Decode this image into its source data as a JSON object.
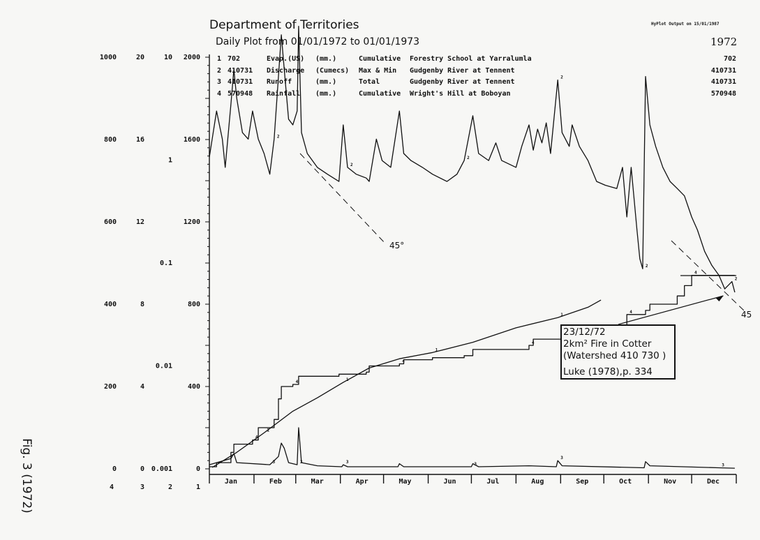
{
  "header": {
    "title": "Department of Territories",
    "subtitle": "Daily Plot from 01/01/1972 to 01/01/1973",
    "output_stamp": "HyPlot Output on 15/01/1987",
    "year": "1972"
  },
  "legend": [
    {
      "no": "1",
      "station": "702",
      "variable": "Evap.(US)",
      "units": "(mm.)",
      "mode": "Cumulative",
      "site": "Forestry School at Yarralumla",
      "total": "702"
    },
    {
      "no": "2",
      "station": "410731",
      "variable": "Discharge",
      "units": "(Cumecs)",
      "mode": "Max & Min",
      "site": "Gudgenby River at Tennent",
      "total": "410731"
    },
    {
      "no": "3",
      "station": "410731",
      "variable": "Runoff",
      "units": "(mm.)",
      "mode": "Total",
      "site": "Gudgenby River at Tennent",
      "total": "410731"
    },
    {
      "no": "4",
      "station": "570948",
      "variable": "Rainfall",
      "units": "(mm.)",
      "mode": "Cumulative",
      "site": "Wright's Hill at Boboyan",
      "total": "570948"
    }
  ],
  "figure_label": "Fig. 3 (1972)",
  "annotation": {
    "lines": [
      "23/12/72",
      "2km² Fire in Cotter",
      "(Watershed 410 730 )",
      "Luke (1978),p. 334"
    ],
    "date": "1972-12-23"
  },
  "angle_labels": [
    "45°",
    "45"
  ],
  "chart_data": {
    "type": "line",
    "xlabel": "",
    "x_range": [
      "1972-01-01",
      "1973-01-01"
    ],
    "months": [
      "Jan",
      "Feb",
      "Mar",
      "Apr",
      "May",
      "Jun",
      "Jul",
      "Aug",
      "Sep",
      "Oct",
      "Nov",
      "Dec"
    ],
    "grid": false,
    "axes": [
      {
        "id": "4",
        "ticks": [
          "1000",
          "800",
          "600",
          "400",
          "200",
          "0"
        ],
        "range": [
          0,
          1000
        ],
        "scale": "linear"
      },
      {
        "id": "3",
        "ticks": [
          "20",
          "16",
          "12",
          "8",
          "4",
          "0"
        ],
        "range": [
          0,
          20
        ],
        "scale": "linear"
      },
      {
        "id": "2",
        "ticks": [
          "10",
          "1",
          "0.1",
          "0.01",
          "0.001"
        ],
        "range": [
          0.001,
          10
        ],
        "scale": "log"
      },
      {
        "id": "1",
        "ticks": [
          "2000",
          "1600",
          "1200",
          "800",
          "400",
          "0"
        ],
        "range": [
          0,
          2000
        ],
        "scale": "linear"
      }
    ],
    "series": [
      {
        "id": "2",
        "axis": "2",
        "color": "#111111",
        "points": [
          [
            "1972-01-01",
            1.07
          ],
          [
            "1972-01-06",
            3.0
          ],
          [
            "1972-01-10",
            1.6
          ],
          [
            "1972-01-12",
            0.85
          ],
          [
            "1972-01-16",
            3.5
          ],
          [
            "1972-01-18",
            7.6
          ],
          [
            "1972-01-20",
            4.0
          ],
          [
            "1972-01-24",
            1.85
          ],
          [
            "1972-01-28",
            1.6
          ],
          [
            "1972-01-31",
            3.0
          ],
          [
            "1972-02-04",
            1.6
          ],
          [
            "1972-02-08",
            1.16
          ],
          [
            "1972-02-12",
            0.73
          ],
          [
            "1972-02-15",
            1.6
          ],
          [
            "1972-02-18",
            6.5
          ],
          [
            "1972-02-20",
            16.5
          ],
          [
            "1972-02-22",
            7.6
          ],
          [
            "1972-02-25",
            2.5
          ],
          [
            "1972-02-28",
            2.2
          ],
          [
            "1972-03-02",
            3.0
          ],
          [
            "1972-03-03",
            20
          ],
          [
            "1972-03-05",
            1.85
          ],
          [
            "1972-03-09",
            1.16
          ],
          [
            "1972-03-16",
            0.85
          ],
          [
            "1972-03-23",
            0.73
          ],
          [
            "1972-03-31",
            0.62
          ],
          [
            "1972-04-03",
            2.2
          ],
          [
            "1972-04-06",
            0.85
          ],
          [
            "1972-04-12",
            0.73
          ],
          [
            "1972-04-19",
            0.67
          ],
          [
            "1972-04-21",
            0.62
          ],
          [
            "1972-04-26",
            1.6
          ],
          [
            "1972-04-30",
            0.99
          ],
          [
            "1972-05-06",
            0.85
          ],
          [
            "1972-05-12",
            3.0
          ],
          [
            "1972-05-15",
            1.16
          ],
          [
            "1972-05-20",
            0.99
          ],
          [
            "1972-05-28",
            0.85
          ],
          [
            "1972-06-04",
            0.73
          ],
          [
            "1972-06-14",
            0.62
          ],
          [
            "1972-06-21",
            0.73
          ],
          [
            "1972-06-26",
            0.99
          ],
          [
            "1972-07-02",
            2.7
          ],
          [
            "1972-07-06",
            1.16
          ],
          [
            "1972-07-13",
            0.99
          ],
          [
            "1972-07-18",
            1.47
          ],
          [
            "1972-07-22",
            0.99
          ],
          [
            "1972-08-01",
            0.85
          ],
          [
            "1972-08-05",
            1.36
          ],
          [
            "1972-08-10",
            2.2
          ],
          [
            "1972-08-13",
            1.25
          ],
          [
            "1972-08-16",
            2.0
          ],
          [
            "1972-08-19",
            1.47
          ],
          [
            "1972-08-22",
            2.3
          ],
          [
            "1972-08-25",
            1.16
          ],
          [
            "1972-08-30",
            6.0
          ],
          [
            "1972-09-02",
            1.85
          ],
          [
            "1972-09-07",
            1.36
          ],
          [
            "1972-09-09",
            2.2
          ],
          [
            "1972-09-14",
            1.36
          ],
          [
            "1972-09-20",
            0.99
          ],
          [
            "1972-09-26",
            0.62
          ],
          [
            "1972-10-02",
            0.57
          ],
          [
            "1972-10-10",
            0.53
          ],
          [
            "1972-10-14",
            0.85
          ],
          [
            "1972-10-17",
            0.28
          ],
          [
            "1972-10-20",
            0.85
          ],
          [
            "1972-10-24",
            0.21
          ],
          [
            "1972-10-26",
            0.11
          ],
          [
            "1972-10-28",
            0.088
          ],
          [
            "1972-10-30",
            6.5
          ],
          [
            "1972-11-02",
            2.2
          ],
          [
            "1972-11-06",
            1.36
          ],
          [
            "1972-11-11",
            0.85
          ],
          [
            "1972-11-16",
            0.62
          ],
          [
            "1972-11-21",
            0.53
          ],
          [
            "1972-11-26",
            0.45
          ],
          [
            "1972-12-01",
            0.28
          ],
          [
            "1972-12-05",
            0.21
          ],
          [
            "1972-12-10",
            0.13
          ],
          [
            "1972-12-15",
            0.095
          ],
          [
            "1972-12-20",
            0.076
          ],
          [
            "1972-12-24",
            0.056
          ],
          [
            "1972-12-29",
            0.066
          ],
          [
            "1972-12-31",
            0.052
          ]
        ]
      },
      {
        "id": "4",
        "axis": "4",
        "color": "#111111",
        "points": [
          [
            "1972-01-01",
            5
          ],
          [
            "1972-01-06",
            15
          ],
          [
            "1972-01-16",
            40
          ],
          [
            "1972-01-18",
            60
          ],
          [
            "1972-01-31",
            70
          ],
          [
            "1972-02-04",
            100
          ],
          [
            "1972-02-15",
            120
          ],
          [
            "1972-02-18",
            170
          ],
          [
            "1972-02-20",
            200
          ],
          [
            "1972-02-28",
            205
          ],
          [
            "1972-03-03",
            225
          ],
          [
            "1972-03-31",
            230
          ],
          [
            "1972-04-19",
            235
          ],
          [
            "1972-04-21",
            250
          ],
          [
            "1972-05-12",
            255
          ],
          [
            "1972-05-15",
            265
          ],
          [
            "1972-06-04",
            270
          ],
          [
            "1972-06-26",
            275
          ],
          [
            "1972-07-02",
            290
          ],
          [
            "1972-08-10",
            300
          ],
          [
            "1972-08-13",
            315
          ],
          [
            "1972-09-09",
            320
          ],
          [
            "1972-09-14",
            335
          ],
          [
            "1972-10-14",
            345
          ],
          [
            "1972-10-17",
            375
          ],
          [
            "1972-10-30",
            385
          ],
          [
            "1972-11-02",
            400
          ],
          [
            "1972-11-21",
            420
          ],
          [
            "1972-11-26",
            445
          ],
          [
            "1972-12-01",
            470
          ],
          [
            "1972-12-31",
            470
          ]
        ]
      },
      {
        "id": "1",
        "axis": "1",
        "color": "#111111",
        "points": [
          [
            "1972-01-03",
            7
          ],
          [
            "1972-01-20",
            80
          ],
          [
            "1972-02-08",
            175
          ],
          [
            "1972-02-28",
            280
          ],
          [
            "1972-03-16",
            345
          ],
          [
            "1972-04-03",
            420
          ],
          [
            "1972-04-21",
            490
          ],
          [
            "1972-05-12",
            535
          ],
          [
            "1972-06-04",
            565
          ],
          [
            "1972-07-02",
            615
          ],
          [
            "1972-08-01",
            685
          ],
          [
            "1972-08-30",
            735
          ],
          [
            "1972-09-20",
            785
          ],
          [
            "1972-09-29",
            820
          ]
        ]
      },
      {
        "id": "3",
        "axis": "3",
        "color": "#111111",
        "points": [
          [
            "1972-01-01",
            0.2
          ],
          [
            "1972-01-16",
            0.5
          ],
          [
            "1972-01-18",
            0.75
          ],
          [
            "1972-01-20",
            0.3
          ],
          [
            "1972-02-12",
            0.2
          ],
          [
            "1972-02-18",
            0.6
          ],
          [
            "1972-02-20",
            1.25
          ],
          [
            "1972-02-22",
            1.0
          ],
          [
            "1972-02-25",
            0.3
          ],
          [
            "1972-03-02",
            0.2
          ],
          [
            "1972-03-03",
            2.0
          ],
          [
            "1972-03-05",
            0.3
          ],
          [
            "1972-03-16",
            0.15
          ],
          [
            "1972-04-02",
            0.1
          ],
          [
            "1972-04-03",
            0.2
          ],
          [
            "1972-04-06",
            0.1
          ],
          [
            "1972-05-11",
            0.1
          ],
          [
            "1972-05-12",
            0.25
          ],
          [
            "1972-05-15",
            0.1
          ],
          [
            "1972-07-01",
            0.1
          ],
          [
            "1972-07-02",
            0.25
          ],
          [
            "1972-07-06",
            0.1
          ],
          [
            "1972-08-10",
            0.15
          ],
          [
            "1972-08-29",
            0.1
          ],
          [
            "1972-08-30",
            0.4
          ],
          [
            "1972-09-02",
            0.15
          ],
          [
            "1972-10-29",
            0.05
          ],
          [
            "1972-10-30",
            0.35
          ],
          [
            "1972-11-02",
            0.15
          ],
          [
            "1972-12-20",
            0.05
          ],
          [
            "1972-12-31",
            0.03
          ]
        ]
      }
    ]
  }
}
